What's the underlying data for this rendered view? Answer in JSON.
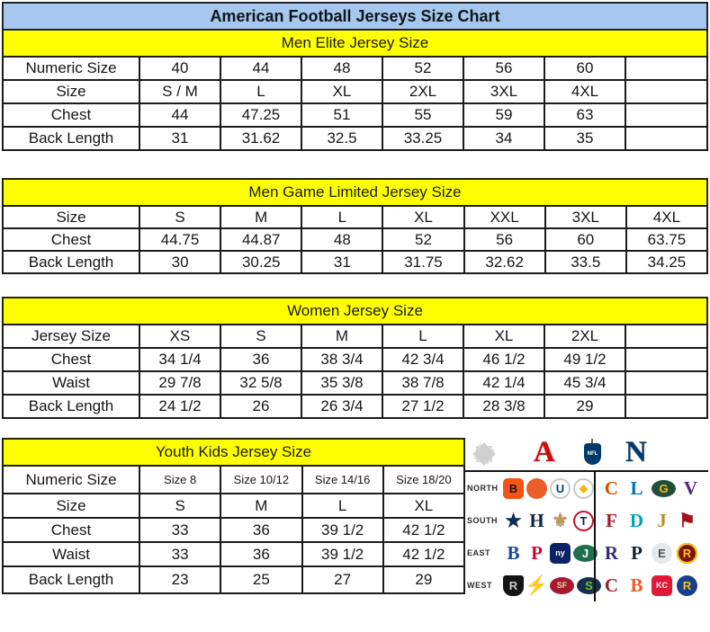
{
  "title": "American Football Jerseys Size Chart",
  "colors": {
    "title_bg": "#a6c8ee",
    "band_bg": "#ffff00",
    "border": "#1b1b1b",
    "afc_red": "#d50a0a",
    "nfc_blue": "#013a6b"
  },
  "tables": [
    {
      "header": "Men Elite Jersey Size",
      "rows": [
        [
          "Numeric Size",
          "40",
          "44",
          "48",
          "52",
          "56",
          "60",
          ""
        ],
        [
          "Size",
          "S / M",
          "L",
          "XL",
          "2XL",
          "3XL",
          "4XL",
          ""
        ],
        [
          "Chest",
          "44",
          "47.25",
          "51",
          "55",
          "59",
          "63",
          ""
        ],
        [
          "Back Length",
          "31",
          "31.62",
          "32.5",
          "33.25",
          "34",
          "35",
          ""
        ]
      ]
    },
    {
      "header": "Men Game Limited Jersey Size",
      "rows": [
        [
          "Size",
          "S",
          "M",
          "L",
          "XL",
          "XXL",
          "3XL",
          "4XL"
        ],
        [
          "Chest",
          "44.75",
          "44.87",
          "48",
          "52",
          "56",
          "60",
          "63.75"
        ],
        [
          "Back Length",
          "30",
          "30.25",
          "31",
          "31.75",
          "32.62",
          "33.5",
          "34.25"
        ]
      ]
    },
    {
      "header": "Women Jersey Size",
      "rows": [
        [
          "Jersey Size",
          "XS",
          "S",
          "M",
          "L",
          "XL",
          "2XL",
          ""
        ],
        [
          "Chest",
          "34 1/4",
          "36",
          "38 3/4",
          "42 3/4",
          "46 1/2",
          "49 1/2",
          ""
        ],
        [
          "Waist",
          "29 7/8",
          "32 5/8",
          "35 3/8",
          "38 7/8",
          "42 1/4",
          "45 3/4",
          ""
        ],
        [
          "Back Length",
          "24 1/2",
          "26",
          "26 3/4",
          "27 1/2",
          "28 3/8",
          "29",
          ""
        ]
      ]
    },
    {
      "header": "Youth Kids Jersey Size",
      "rows": [
        [
          "Numeric Size",
          "Size 8",
          "Size 10/12",
          "Size 14/16",
          "Size 18/20"
        ],
        [
          "Size",
          "S",
          "M",
          "L",
          "XL"
        ],
        [
          "Chest",
          "33",
          "36",
          "39 1/2",
          "42 1/2"
        ],
        [
          "Waist",
          "33",
          "36",
          "39 1/2",
          "42 1/2"
        ],
        [
          "Back Length",
          "23",
          "25",
          "27",
          "29"
        ]
      ]
    }
  ],
  "nfl_panel": {
    "afc_letter": "A",
    "nfc_letter": "N",
    "shield_text": "NFL",
    "divisions": [
      {
        "label": "NORTH",
        "afc": [
          {
            "name": "bengals",
            "ch": "B",
            "bg": "#f65314",
            "fg": "#1a1a1a",
            "shape": "round"
          },
          {
            "name": "browns",
            "ch": "",
            "bg": "#ec5d28",
            "fg": "#ffffff",
            "shape": "circle"
          },
          {
            "name": "colts",
            "ch": "U",
            "bg": "#ffffff",
            "fg": "#0b3a73",
            "shape": "circle",
            "border": "#c9c9c9"
          },
          {
            "name": "steelers",
            "ch": "◆",
            "bg": "#ffffff",
            "fg": "#f3b612",
            "shape": "circle",
            "border": "#c9c9c9",
            "cls": "glyph"
          }
        ],
        "nfc": [
          {
            "name": "bears",
            "ch": "C",
            "bg": "none",
            "fg": "#d35400",
            "shape": "plain"
          },
          {
            "name": "lions",
            "ch": "L",
            "bg": "none",
            "fg": "#0076b6",
            "shape": "plain"
          },
          {
            "name": "packers",
            "ch": "G",
            "bg": "#20503c",
            "fg": "#ffb612",
            "shape": "oval"
          },
          {
            "name": "vikings",
            "ch": "V",
            "bg": "none",
            "fg": "#4f2683",
            "shape": "plain"
          }
        ]
      },
      {
        "label": "SOUTH",
        "afc": [
          {
            "name": "cowboys",
            "ch": "★",
            "bg": "none",
            "fg": "#0b2a52",
            "shape": "plain"
          },
          {
            "name": "texans",
            "ch": "H",
            "bg": "none",
            "fg": "#0b2545",
            "shape": "plain"
          },
          {
            "name": "saints",
            "ch": "⚜",
            "bg": "none",
            "fg": "#b9975b",
            "shape": "plain"
          },
          {
            "name": "titans",
            "ch": "T",
            "bg": "#ffffff",
            "fg": "#0c2340",
            "shape": "circle",
            "border": "#c8102e"
          }
        ],
        "nfc": [
          {
            "name": "falcons",
            "ch": "F",
            "bg": "none",
            "fg": "#a71930",
            "shape": "plain"
          },
          {
            "name": "dolphins",
            "ch": "D",
            "bg": "none",
            "fg": "#00a5b8",
            "shape": "plain"
          },
          {
            "name": "jaguars",
            "ch": "J",
            "bg": "none",
            "fg": "#b78b1f",
            "shape": "plain"
          },
          {
            "name": "buccaneers",
            "ch": "⚑",
            "bg": "none",
            "fg": "#a50f1e",
            "shape": "plain"
          }
        ]
      },
      {
        "label": "EAST",
        "afc": [
          {
            "name": "bills",
            "ch": "B",
            "bg": "none",
            "fg": "#1a4a9e",
            "shape": "plain"
          },
          {
            "name": "patriots",
            "ch": "P",
            "bg": "none",
            "fg": "#c60c30",
            "shape": "plain"
          },
          {
            "name": "giants",
            "ch": "ny",
            "bg": "#0b2265",
            "fg": "#ffffff",
            "shape": "round",
            "cls": "tiny"
          },
          {
            "name": "jets",
            "ch": "J",
            "bg": "#1f6e4e",
            "fg": "#ffffff",
            "shape": "oval"
          }
        ],
        "nfc": [
          {
            "name": "ravens",
            "ch": "R",
            "bg": "none",
            "fg": "#3b2a7d",
            "shape": "plain"
          },
          {
            "name": "panthers",
            "ch": "P",
            "bg": "none",
            "fg": "#10222b",
            "shape": "plain"
          },
          {
            "name": "eagles",
            "ch": "E",
            "bg": "#e4e8ea",
            "fg": "#46535c",
            "shape": "circle"
          },
          {
            "name": "redskins",
            "ch": "R",
            "bg": "#7c1415",
            "fg": "#ffc20f",
            "shape": "circle",
            "border": "#ffc20f"
          }
        ]
      },
      {
        "label": "WEST",
        "afc": [
          {
            "name": "raiders",
            "ch": "R",
            "bg": "#141414",
            "fg": "#c9c9c9",
            "shape": "shield-sh"
          },
          {
            "name": "chargers",
            "ch": "⚡",
            "bg": "none",
            "fg": "#f2b200",
            "shape": "plain"
          },
          {
            "name": "49ers",
            "ch": "SF",
            "bg": "#a6192e",
            "fg": "#e6d3a3",
            "shape": "oval",
            "cls": "tiny"
          },
          {
            "name": "seahawks",
            "ch": "S",
            "bg": "#15304d",
            "fg": "#6ec02e",
            "shape": "oval"
          }
        ],
        "nfc": [
          {
            "name": "cardinals",
            "ch": "C",
            "bg": "none",
            "fg": "#9d2235",
            "shape": "plain"
          },
          {
            "name": "broncos",
            "ch": "B",
            "bg": "none",
            "fg": "#f05a28",
            "shape": "plain"
          },
          {
            "name": "chiefs",
            "ch": "KC",
            "bg": "#e31837",
            "fg": "#ffffff",
            "shape": "round",
            "cls": "tiny"
          },
          {
            "name": "rams",
            "ch": "R",
            "bg": "#1a3e8c",
            "fg": "#f2c200",
            "shape": "circle"
          }
        ]
      }
    ]
  }
}
